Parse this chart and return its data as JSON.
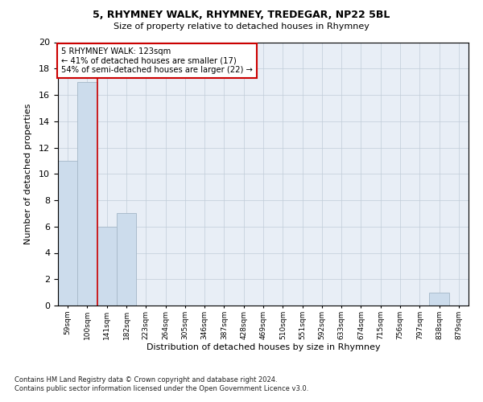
{
  "title1": "5, RHYMNEY WALK, RHYMNEY, TREDEGAR, NP22 5BL",
  "title2": "Size of property relative to detached houses in Rhymney",
  "xlabel": "Distribution of detached houses by size in Rhymney",
  "ylabel": "Number of detached properties",
  "footer1": "Contains HM Land Registry data © Crown copyright and database right 2024.",
  "footer2": "Contains public sector information licensed under the Open Government Licence v3.0.",
  "annotation_line1": "5 RHYMNEY WALK: 123sqm",
  "annotation_line2": "← 41% of detached houses are smaller (17)",
  "annotation_line3": "54% of semi-detached houses are larger (22) →",
  "bar_labels": [
    "59sqm",
    "100sqm",
    "141sqm",
    "182sqm",
    "223sqm",
    "264sqm",
    "305sqm",
    "346sqm",
    "387sqm",
    "428sqm",
    "469sqm",
    "510sqm",
    "551sqm",
    "592sqm",
    "633sqm",
    "674sqm",
    "715sqm",
    "756sqm",
    "797sqm",
    "838sqm",
    "879sqm"
  ],
  "bar_values": [
    11,
    17,
    6,
    7,
    0,
    0,
    0,
    0,
    0,
    0,
    0,
    0,
    0,
    0,
    0,
    0,
    0,
    0,
    0,
    1,
    0
  ],
  "bar_color": "#ccdcec",
  "bar_edge_color": "#aabccc",
  "red_line_x": 1.5,
  "ylim": [
    0,
    20
  ],
  "yticks": [
    0,
    2,
    4,
    6,
    8,
    10,
    12,
    14,
    16,
    18,
    20
  ],
  "annotation_box_color": "#cc0000",
  "background_color": "#ffffff",
  "plot_bg_color": "#e8eef6"
}
